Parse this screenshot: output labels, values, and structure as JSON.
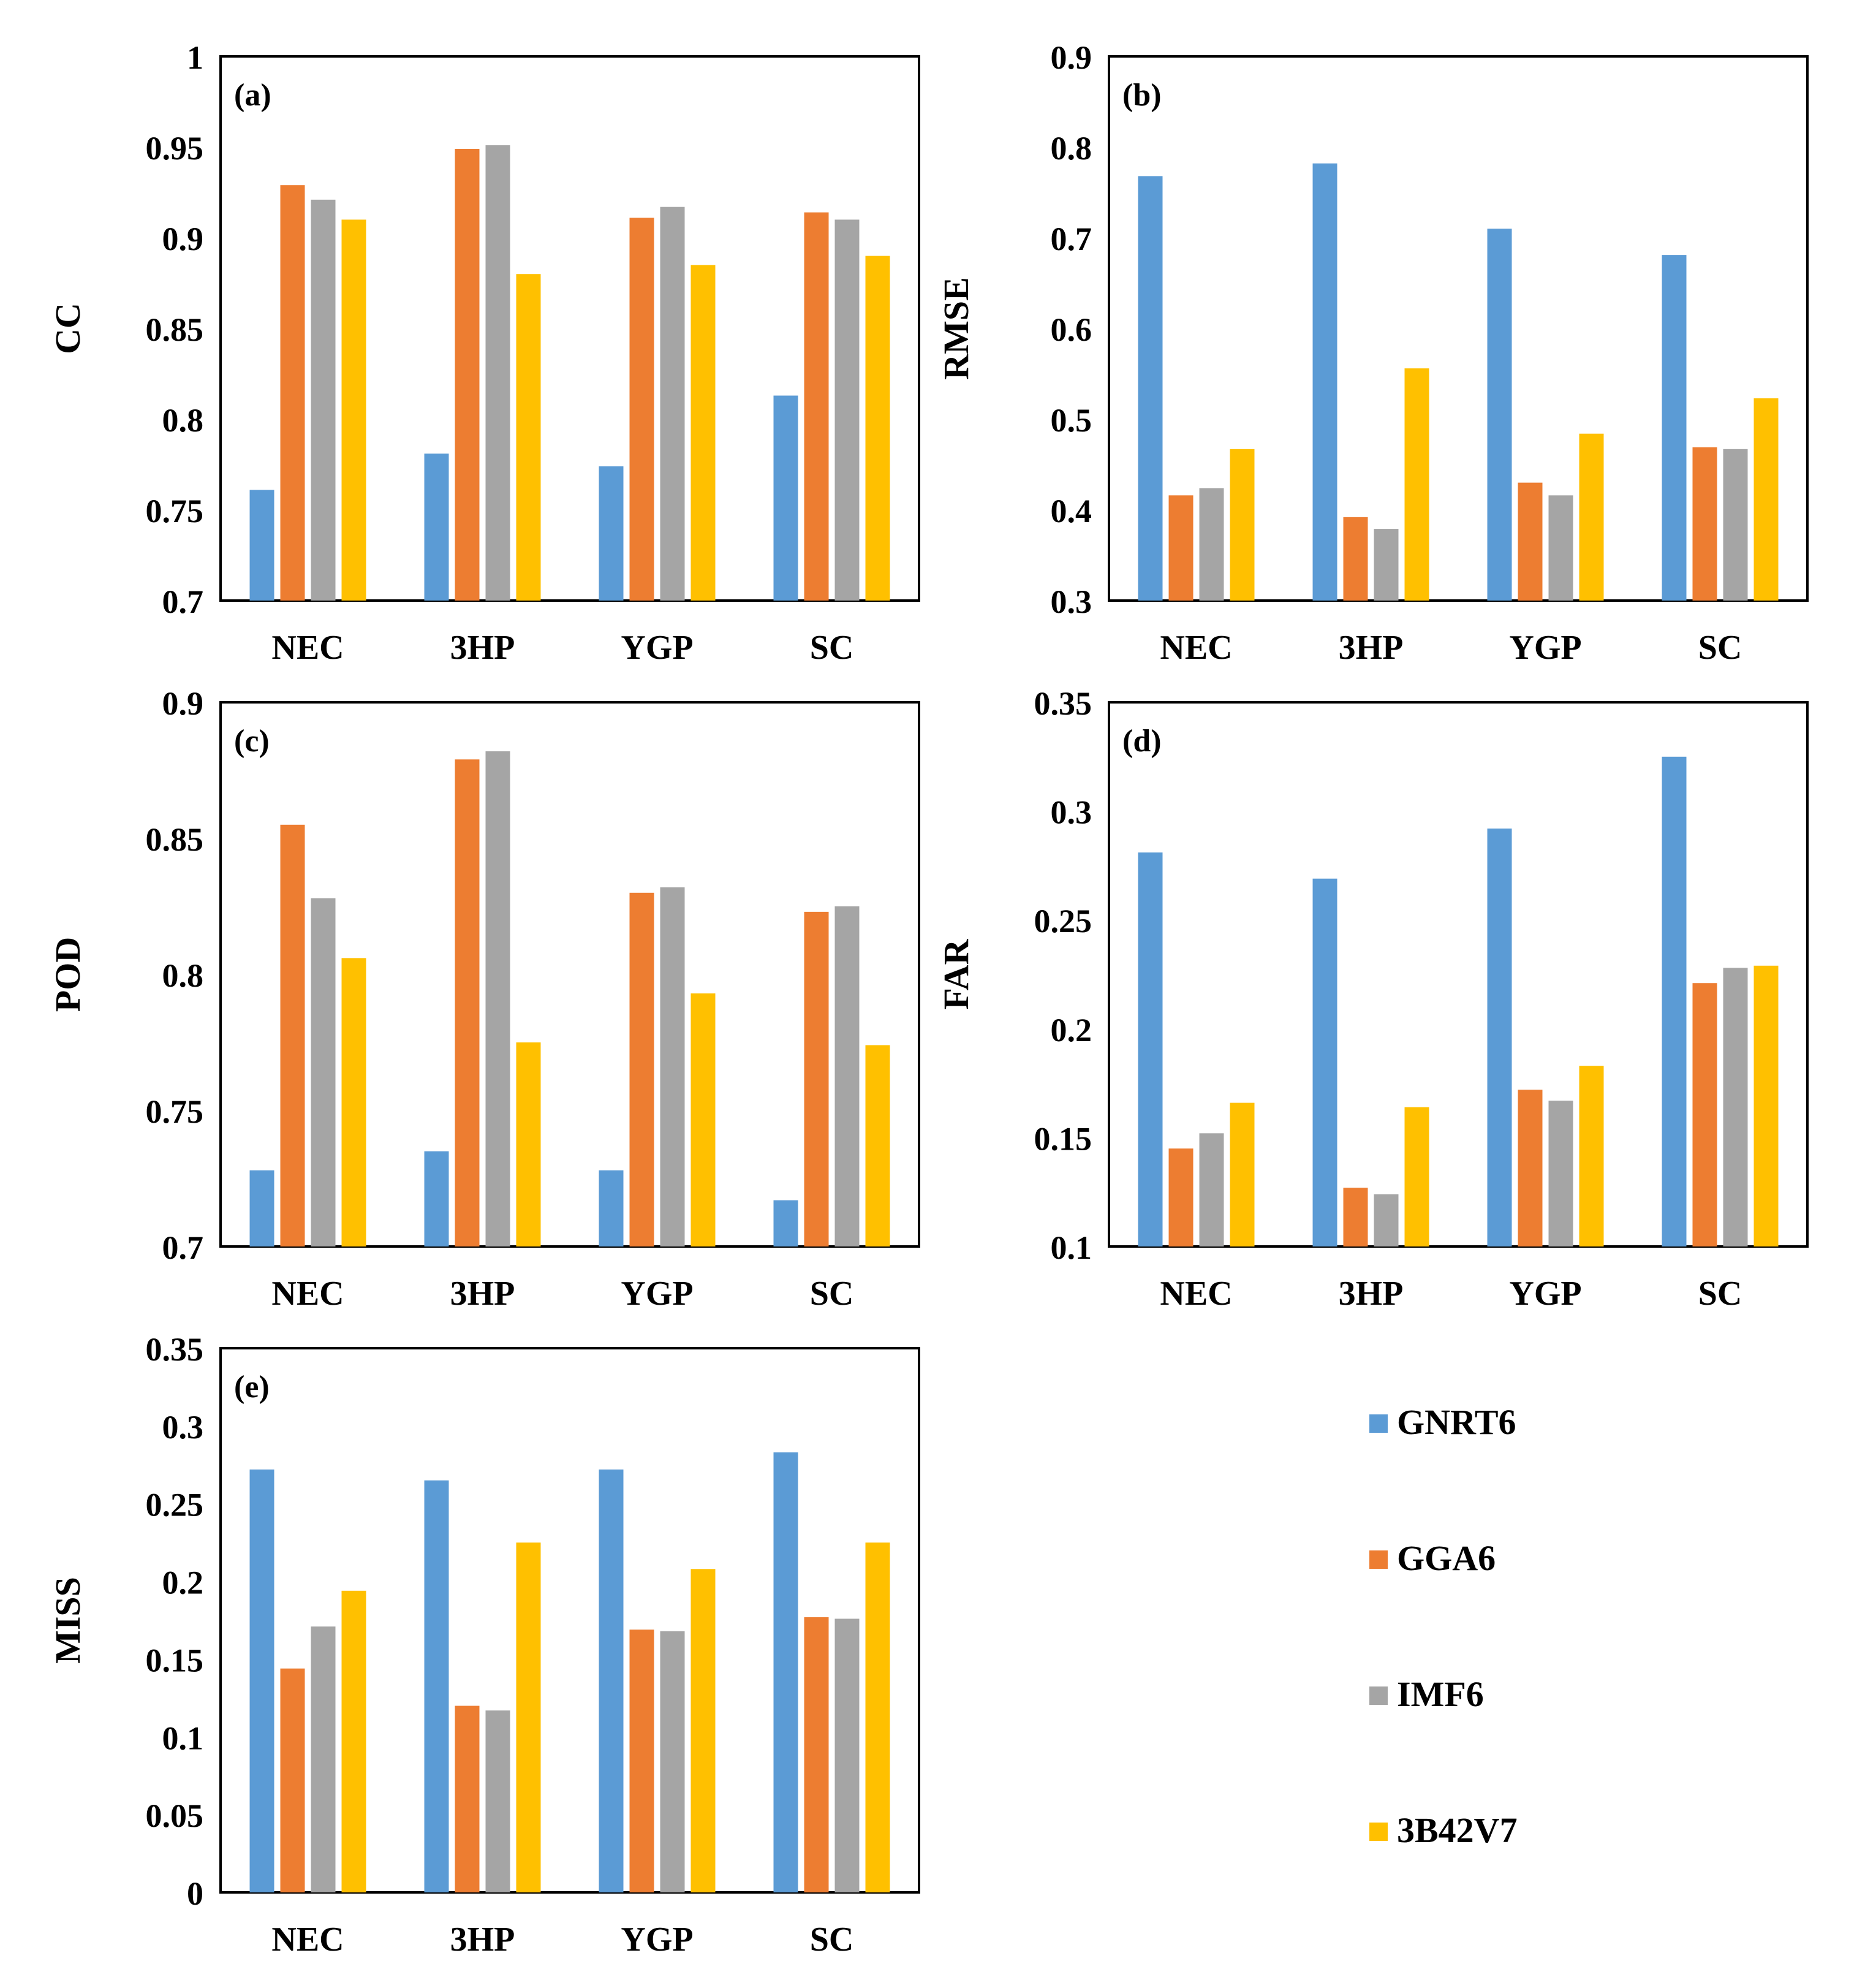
{
  "colors": {
    "GNRT6": "#5b9bd5",
    "GGA6": "#ed7d31",
    "IMF6": "#a5a5a5",
    "3B42V7": "#ffc000"
  },
  "legend": {
    "placement": "bottom-right",
    "items": [
      "GNRT6",
      "GGA6",
      "IMF6",
      "3B42V7"
    ]
  },
  "chart_data": [
    {
      "type": "bar",
      "panel": "(a)",
      "ylabel": "CC",
      "categories": [
        "NEC",
        "3HP",
        "YGP",
        "SC"
      ],
      "ylim": [
        0.7,
        1
      ],
      "yticks": [
        "0.7",
        "0.75",
        "0.8",
        "0.85",
        "0.9",
        "0.95",
        "1"
      ],
      "grid": false,
      "series": [
        {
          "name": "GNRT6",
          "values": [
            0.761,
            0.781,
            0.774,
            0.813
          ]
        },
        {
          "name": "GGA6",
          "values": [
            0.929,
            0.949,
            0.911,
            0.914
          ]
        },
        {
          "name": "IMF6",
          "values": [
            0.921,
            0.951,
            0.917,
            0.91
          ]
        },
        {
          "name": "3B42V7",
          "values": [
            0.91,
            0.88,
            0.885,
            0.89
          ]
        }
      ]
    },
    {
      "type": "bar",
      "panel": "(b)",
      "ylabel": "RMSE",
      "categories": [
        "NEC",
        "3HP",
        "YGP",
        "SC"
      ],
      "ylim": [
        0.3,
        0.9
      ],
      "yticks": [
        "0.3",
        "0.4",
        "0.5",
        "0.6",
        "0.7",
        "0.8",
        "0.9"
      ],
      "grid": false,
      "series": [
        {
          "name": "GNRT6",
          "values": [
            0.768,
            0.782,
            0.71,
            0.681
          ]
        },
        {
          "name": "GGA6",
          "values": [
            0.416,
            0.392,
            0.43,
            0.469
          ]
        },
        {
          "name": "IMF6",
          "values": [
            0.424,
            0.379,
            0.416,
            0.467
          ]
        },
        {
          "name": "3B42V7",
          "values": [
            0.467,
            0.556,
            0.484,
            0.523
          ]
        }
      ]
    },
    {
      "type": "bar",
      "panel": "(c)",
      "ylabel": "POD",
      "categories": [
        "NEC",
        "3HP",
        "YGP",
        "SC"
      ],
      "ylim": [
        0.7,
        0.9
      ],
      "yticks": [
        "0.7",
        "0.75",
        "0.8",
        "0.85",
        "0.9"
      ],
      "grid": false,
      "series": [
        {
          "name": "GNRT6",
          "values": [
            0.728,
            0.735,
            0.728,
            0.717
          ]
        },
        {
          "name": "GGA6",
          "values": [
            0.855,
            0.879,
            0.83,
            0.823
          ]
        },
        {
          "name": "IMF6",
          "values": [
            0.828,
            0.882,
            0.832,
            0.825
          ]
        },
        {
          "name": "3B42V7",
          "values": [
            0.806,
            0.775,
            0.793,
            0.774
          ]
        }
      ]
    },
    {
      "type": "bar",
      "panel": "(d)",
      "ylabel": "FAR",
      "categories": [
        "NEC",
        "3HP",
        "YGP",
        "SC"
      ],
      "ylim": [
        0.1,
        0.35
      ],
      "yticks": [
        "0.1",
        "0.15",
        "0.2",
        "0.25",
        "0.3",
        "0.35"
      ],
      "grid": false,
      "series": [
        {
          "name": "GNRT6",
          "values": [
            0.281,
            0.269,
            0.292,
            0.325
          ]
        },
        {
          "name": "GGA6",
          "values": [
            0.145,
            0.127,
            0.172,
            0.221
          ]
        },
        {
          "name": "IMF6",
          "values": [
            0.152,
            0.124,
            0.167,
            0.228
          ]
        },
        {
          "name": "3B42V7",
          "values": [
            0.166,
            0.164,
            0.183,
            0.229
          ]
        }
      ]
    },
    {
      "type": "bar",
      "panel": "(e)",
      "ylabel": "MISS",
      "categories": [
        "NEC",
        "3HP",
        "YGP",
        "SC"
      ],
      "ylim": [
        0,
        0.35
      ],
      "yticks": [
        "0",
        "0.05",
        "0.1",
        "0.15",
        "0.2",
        "0.25",
        "0.3",
        "0.35"
      ],
      "grid": false,
      "series": [
        {
          "name": "GNRT6",
          "values": [
            0.272,
            0.265,
            0.272,
            0.283
          ]
        },
        {
          "name": "GGA6",
          "values": [
            0.144,
            0.12,
            0.169,
            0.177
          ]
        },
        {
          "name": "IMF6",
          "values": [
            0.171,
            0.117,
            0.168,
            0.176
          ]
        },
        {
          "name": "3B42V7",
          "values": [
            0.194,
            0.225,
            0.208,
            0.225
          ]
        }
      ]
    }
  ]
}
